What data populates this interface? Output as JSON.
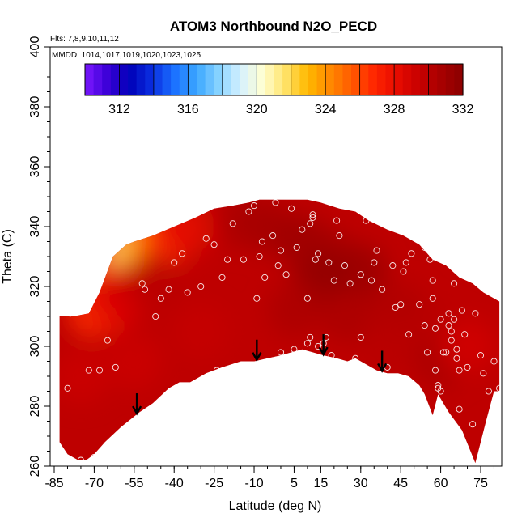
{
  "chart_data": {
    "type": "heatmap",
    "title": "ATOM3 Northbound N2O_PECD",
    "flights_label": "Flts: 7,8,9,10,11,12",
    "mmdd_label": "MMDD: 1014,1017,1019,1020,1023,1025",
    "xlabel": "Latitude (deg N)",
    "ylabel": "Theta (C)",
    "xlim": [
      -85,
      88
    ],
    "ylim": [
      260,
      400
    ],
    "xticks": [
      -85,
      -70,
      -55,
      -40,
      -25,
      -10,
      5,
      15,
      30,
      45,
      60,
      75
    ],
    "xtick_labels": [
      "-85",
      "-70",
      "-55",
      "-40",
      "-25",
      "-10",
      "5",
      "15",
      "30",
      "45",
      "60",
      "75"
    ],
    "yticks": [
      260,
      280,
      300,
      320,
      340,
      360,
      380,
      400
    ],
    "ytick_labels": [
      "260",
      "280",
      "300",
      "320",
      "340",
      "360",
      "380",
      "400"
    ],
    "colorbar": {
      "min": 310,
      "max": 332,
      "ticks": [
        312,
        316,
        320,
        324,
        328,
        332
      ],
      "tick_labels": [
        "312",
        "316",
        "320",
        "324",
        "328",
        "332"
      ],
      "colors": [
        "#7b18ff",
        "#3c00d8",
        "#0000b8",
        "#0a2ee0",
        "#1a70ff",
        "#3aa6ff",
        "#86d2ff",
        "#d6f1ff",
        "#ffffd2",
        "#ffe36a",
        "#ffba00",
        "#ff8a00",
        "#ff5a00",
        "#ff2600",
        "#e80c00",
        "#c80000",
        "#a80000",
        "#8a0000"
      ]
    },
    "surface": {
      "upper_boundary": [
        [
          -83,
          310
        ],
        [
          -78,
          310
        ],
        [
          -72,
          311
        ],
        [
          -68,
          318
        ],
        [
          -63,
          330
        ],
        [
          -58,
          334
        ],
        [
          -55,
          335
        ],
        [
          -48,
          337
        ],
        [
          -40,
          340
        ],
        [
          -32,
          343
        ],
        [
          -25,
          346
        ],
        [
          -18,
          347
        ],
        [
          -12,
          348
        ],
        [
          -8,
          349
        ],
        [
          0,
          349
        ],
        [
          5,
          349
        ],
        [
          10,
          349
        ],
        [
          15,
          348
        ],
        [
          22,
          346
        ],
        [
          28,
          345
        ],
        [
          33,
          342
        ],
        [
          40,
          339
        ],
        [
          46,
          337
        ],
        [
          52,
          334
        ],
        [
          57,
          329
        ],
        [
          62,
          327
        ],
        [
          67,
          323
        ],
        [
          72,
          321
        ],
        [
          76,
          318
        ],
        [
          80,
          316
        ],
        [
          82,
          315
        ]
      ],
      "lower_boundary": [
        [
          82,
          285
        ],
        [
          80,
          285
        ],
        [
          77,
          275
        ],
        [
          73,
          261
        ],
        [
          68,
          272
        ],
        [
          63,
          278
        ],
        [
          59,
          284
        ],
        [
          57,
          277
        ],
        [
          54,
          284
        ],
        [
          52,
          287
        ],
        [
          48,
          290
        ],
        [
          44,
          291
        ],
        [
          40,
          291
        ],
        [
          36,
          292
        ],
        [
          32,
          294
        ],
        [
          28,
          296
        ],
        [
          25,
          295
        ],
        [
          21,
          296
        ],
        [
          16,
          297
        ],
        [
          12,
          298
        ],
        [
          8,
          299
        ],
        [
          4,
          298
        ],
        [
          0,
          297
        ],
        [
          -5,
          296
        ],
        [
          -10,
          295
        ],
        [
          -15,
          295
        ],
        [
          -22,
          293
        ],
        [
          -28,
          291
        ],
        [
          -34,
          288
        ],
        [
          -38,
          288
        ],
        [
          -42,
          286
        ],
        [
          -48,
          281
        ],
        [
          -53,
          278
        ],
        [
          -60,
          273
        ],
        [
          -66,
          268
        ],
        [
          -70,
          264
        ],
        [
          -73,
          262
        ],
        [
          -76,
          262
        ],
        [
          -80,
          264
        ],
        [
          -83,
          268
        ]
      ],
      "blob_points": [
        [
          -66,
          322,
          327.5
        ],
        [
          -60,
          327,
          326
        ],
        [
          -55,
          332,
          321.5
        ],
        [
          -50,
          333,
          323.5
        ],
        [
          -45,
          335,
          325.5
        ],
        [
          -40,
          338,
          327
        ],
        [
          -35,
          340,
          328.5
        ],
        [
          -70,
          312,
          326.5
        ],
        [
          -64,
          314,
          328
        ],
        [
          -58,
          318,
          329
        ],
        [
          -48,
          322,
          330
        ],
        [
          -15,
          342,
          330.5
        ],
        [
          -5,
          340,
          330.8
        ],
        [
          8,
          335,
          331.2
        ],
        [
          18,
          330,
          331
        ],
        [
          30,
          325,
          331.3
        ],
        [
          15,
          322,
          331.6
        ],
        [
          5,
          312,
          330.5
        ],
        [
          25,
          310,
          330.6
        ],
        [
          45,
          312,
          330.4
        ],
        [
          58,
          305,
          330
        ],
        [
          60,
          295,
          330.6
        ],
        [
          -30,
          305,
          329.5
        ],
        [
          -55,
          295,
          329.3
        ],
        [
          -75,
          290,
          329.3
        ],
        [
          70,
          300,
          329
        ],
        [
          -10,
          300,
          329.8
        ],
        [
          40,
          300,
          330
        ]
      ],
      "fill_value": 329.8
    },
    "sample_points": [
      [
        -72,
        292
      ],
      [
        -68,
        292
      ],
      [
        -62,
        293
      ],
      [
        -65,
        302
      ],
      [
        -70,
        263
      ],
      [
        -80,
        286
      ],
      [
        -75,
        262
      ],
      [
        -79,
        311
      ],
      [
        -52,
        321
      ],
      [
        -51,
        319
      ],
      [
        -47,
        310
      ],
      [
        -45,
        316
      ],
      [
        -42,
        319
      ],
      [
        -40,
        328
      ],
      [
        -37,
        331
      ],
      [
        -35,
        318
      ],
      [
        -30,
        320
      ],
      [
        -28,
        336
      ],
      [
        -25,
        334
      ],
      [
        -24,
        292
      ],
      [
        -22,
        323
      ],
      [
        -20,
        329
      ],
      [
        -18,
        341
      ],
      [
        -14,
        329
      ],
      [
        -12,
        345
      ],
      [
        -10,
        347
      ],
      [
        -9,
        316
      ],
      [
        -8,
        330
      ],
      [
        -7,
        335
      ],
      [
        -6,
        323
      ],
      [
        -3,
        337
      ],
      [
        -2,
        348
      ],
      [
        -1,
        327
      ],
      [
        0,
        298
      ],
      [
        0,
        332
      ],
      [
        2,
        324
      ],
      [
        4,
        346
      ],
      [
        5,
        299
      ],
      [
        6,
        333
      ],
      [
        8,
        339
      ],
      [
        10,
        316
      ],
      [
        10,
        301
      ],
      [
        11,
        303
      ],
      [
        11,
        341
      ],
      [
        12,
        343
      ],
      [
        12,
        344
      ],
      [
        13,
        329
      ],
      [
        14,
        300
      ],
      [
        14,
        331
      ],
      [
        16,
        301
      ],
      [
        17,
        303
      ],
      [
        18,
        328
      ],
      [
        19,
        297
      ],
      [
        20,
        322
      ],
      [
        21,
        342
      ],
      [
        22,
        337
      ],
      [
        24,
        327
      ],
      [
        26,
        321
      ],
      [
        28,
        296
      ],
      [
        30,
        303
      ],
      [
        30,
        324
      ],
      [
        32,
        342
      ],
      [
        34,
        322
      ],
      [
        35,
        328
      ],
      [
        36,
        332
      ],
      [
        38,
        319
      ],
      [
        40,
        293
      ],
      [
        42,
        327
      ],
      [
        43,
        313
      ],
      [
        45,
        314
      ],
      [
        46,
        325
      ],
      [
        47,
        328
      ],
      [
        48,
        304
      ],
      [
        49,
        331
      ],
      [
        50,
        337
      ],
      [
        52,
        314
      ],
      [
        53,
        336
      ],
      [
        54,
        307
      ],
      [
        54,
        333
      ],
      [
        55,
        298
      ],
      [
        56,
        329
      ],
      [
        57,
        322
      ],
      [
        57,
        316
      ],
      [
        58,
        306
      ],
      [
        58,
        292
      ],
      [
        59,
        286
      ],
      [
        59,
        287
      ],
      [
        60,
        309
      ],
      [
        60,
        285
      ],
      [
        61,
        298
      ],
      [
        62,
        298
      ],
      [
        63,
        311
      ],
      [
        63,
        307
      ],
      [
        64,
        305
      ],
      [
        64,
        302
      ],
      [
        65,
        321
      ],
      [
        65,
        309
      ],
      [
        66,
        299
      ],
      [
        66,
        296
      ],
      [
        67,
        292
      ],
      [
        67,
        279
      ],
      [
        68,
        312
      ],
      [
        69,
        304
      ],
      [
        70,
        293
      ],
      [
        72,
        274
      ],
      [
        73,
        311
      ],
      [
        75,
        297
      ],
      [
        76,
        291
      ],
      [
        78,
        285
      ],
      [
        82,
        286
      ],
      [
        80,
        295
      ]
    ],
    "arrows": [
      -54,
      -9,
      16,
      38
    ]
  }
}
